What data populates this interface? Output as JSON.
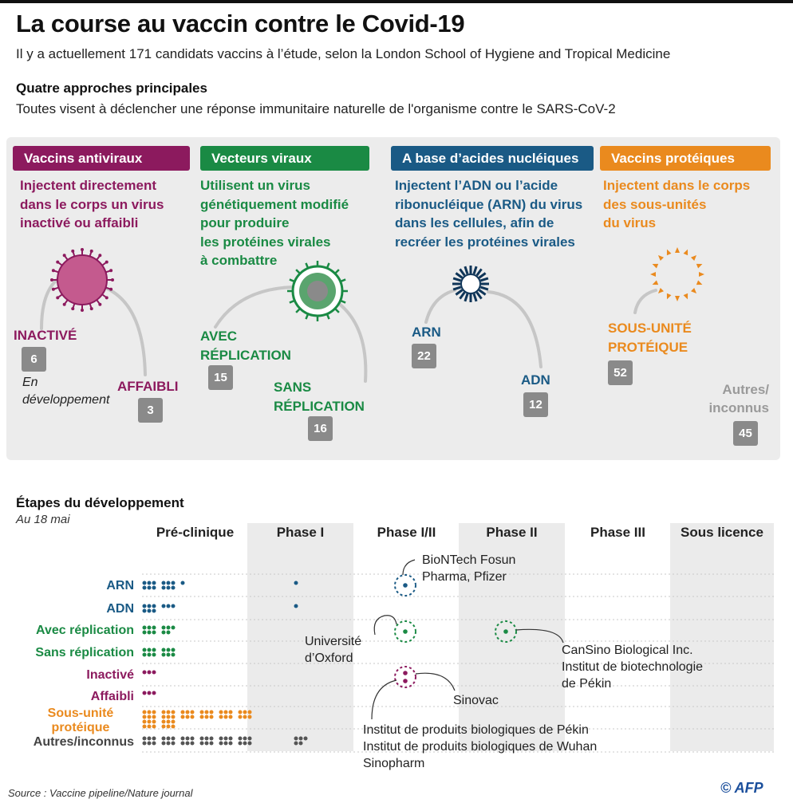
{
  "title": "La course au vaccin contre le Covid-19",
  "subtitle": "Il y a actuellement 171 candidats vaccins à l’étude, selon la London School of Hygiene and Tropical Medicine",
  "approaches_title": "Quatre approches principales",
  "approaches_subtitle": "Toutes visent à déclencher une réponse immunitaire naturelle de l'organisme contre le SARS-CoV-2",
  "colors": {
    "antiviraux": "#8c1a5e",
    "vecteurs": "#1a8a44",
    "acides": "#1a5a85",
    "proteiques": "#ea8a1e",
    "grey": "#8a8a8a",
    "panel": "#ececec"
  },
  "categories": {
    "antiviraux": {
      "header": "Vaccins antiviraux",
      "desc": "Injectent directement\ndans le corps un virus\ninactivé ou affaibli",
      "a_label": "INACTIVÉ",
      "a_count": "6",
      "b_label": "AFFAIBLI",
      "b_count": "3",
      "note": "En\ndéveloppement"
    },
    "vecteurs": {
      "header": "Vecteurs viraux",
      "desc": "Utilisent un virus\ngénétiquement modifié\npour produire\nles protéines virales\nà combattre",
      "a_label": "AVEC\nRÉPLICATION",
      "a_count": "15",
      "b_label": "SANS\nRÉPLICATION",
      "b_count": "16"
    },
    "acides": {
      "header": "A base d’acides nucléiques",
      "desc": "Injectent l’ADN ou l’acide\nribonucléique (ARN) du virus\ndans les cellules, afin de\nrecréer les protéines virales",
      "a_label": "ARN",
      "a_count": "22",
      "b_label": "ADN",
      "b_count": "12"
    },
    "proteiques": {
      "header": "Vaccins protéiques",
      "desc": "Injectent dans le corps\ndes sous-unités\ndu virus",
      "a_label": "SOUS-UNITÉ\nPROTÉIQUE",
      "a_count": "52",
      "other_label": "Autres/\ninconnus",
      "other_count": "45"
    }
  },
  "steps": {
    "title": "Étapes du développement",
    "date": "Au 18 mai",
    "phases": [
      "Pré-clinique",
      "Phase I",
      "Phase I/II",
      "Phase II",
      "Phase III",
      "Sous licence"
    ],
    "rows": [
      {
        "label": "ARN",
        "color": "#1a5a85",
        "preclinical": 13,
        "phase1": 1
      },
      {
        "label": "ADN",
        "color": "#1a5a85",
        "preclinical": 9,
        "phase1": 1
      },
      {
        "label": "Avec réplication",
        "color": "#1a8a44",
        "preclinical": 11,
        "phase1": 0
      },
      {
        "label": "Sans réplication",
        "color": "#1a8a44",
        "preclinical": 12,
        "phase1": 0
      },
      {
        "label": "Inactivé",
        "color": "#8c1a5e",
        "preclinical": 3,
        "phase1": 0
      },
      {
        "label": "Affaibli",
        "color": "#8c1a5e",
        "preclinical": 3,
        "phase1": 0
      },
      {
        "label": "Sous-unité\nprotéique",
        "color": "#ea8a1e",
        "preclinical": 48,
        "phase1": 0
      },
      {
        "label": "Autres/inconnus",
        "color": "#555555",
        "preclinical": 38,
        "phase1": 5
      }
    ],
    "annotations": {
      "biontech": "BioNTech Fosun\nPharma, Pfizer",
      "oxford": "Université\nd’Oxford",
      "cansino": "CanSino Biological Inc.\nInstitut de biotechnologie\nde Pékin",
      "sinovac": "Sinovac",
      "beijing": "Institut de produits biologiques de Pékin\nInstitut de produits biologiques de Wuhan\nSinopharm"
    }
  },
  "source": "Source : Vaccine pipeline/Nature journal",
  "credit": "© AFP"
}
